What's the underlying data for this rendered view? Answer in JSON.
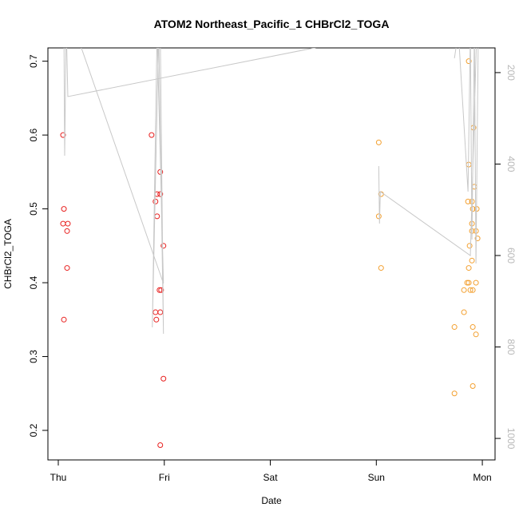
{
  "chart_data": {
    "type": "scatter",
    "title": "ATOM2 Northeast_Pacific_1 CHBrCl2_TOGA",
    "x_label": "Date",
    "y_label": "CHBrCl2_TOGA",
    "xlim": [
      -0.098,
      4.12
    ],
    "xticks": [
      {
        "value": 0,
        "label": "Thu"
      },
      {
        "value": 1,
        "label": "Fri"
      },
      {
        "value": 2,
        "label": "Sat"
      },
      {
        "value": 3,
        "label": "Sun"
      },
      {
        "value": 4,
        "label": "Mon"
      }
    ],
    "ylim": [
      0.16,
      0.718
    ],
    "yticks": [
      0.2,
      0.3,
      0.4,
      0.5,
      0.6,
      0.7
    ],
    "y2lim": [
      1047,
      146
    ],
    "y2ticks": [
      200,
      400,
      600,
      800,
      1000
    ],
    "series": [
      {
        "color": "#e8201f",
        "x": [
          0.045,
          0.053,
          0.045,
          0.09,
          0.083,
          0.083,
          0.053,
          0.88,
          0.917,
          0.932,
          0.962,
          0.962,
          0.932,
          0.992,
          0.955,
          0.97,
          0.917,
          0.962,
          0.925,
          0.992,
          0.962
        ],
        "values": [
          0.6,
          0.5,
          0.48,
          0.48,
          0.47,
          0.42,
          0.35,
          0.6,
          0.51,
          0.52,
          0.52,
          0.55,
          0.49,
          0.45,
          0.39,
          0.39,
          0.36,
          0.36,
          0.35,
          0.27,
          0.18
        ]
      },
      {
        "color": "#f3a030",
        "x": [
          3.023,
          3.045,
          3.023,
          3.045,
          3.872,
          3.872,
          3.917,
          3.925,
          3.865,
          3.902,
          3.91,
          3.947,
          3.902,
          3.902,
          3.94,
          3.955,
          3.88,
          3.902,
          3.872,
          3.857,
          3.872,
          3.94,
          3.827,
          3.887,
          3.91,
          3.827,
          3.737,
          3.91,
          3.94,
          3.737,
          3.91
        ],
        "values": [
          0.59,
          0.52,
          0.49,
          0.42,
          0.7,
          0.56,
          0.61,
          0.53,
          0.51,
          0.51,
          0.5,
          0.5,
          0.48,
          0.47,
          0.47,
          0.46,
          0.45,
          0.43,
          0.42,
          0.4,
          0.4,
          0.4,
          0.39,
          0.39,
          0.39,
          0.36,
          0.34,
          0.34,
          0.33,
          0.25,
          0.26
        ]
      },
      {
        "color": "#c8c8c8",
        "style": "line",
        "axis": "y2",
        "x": [
          0.053,
          0.06,
          0.075,
          0.09,
          2.534,
          null,
          0.165,
          0.992,
          0.932,
          0.887,
          0.947,
          0.992,
          0.962,
          null,
          3.023,
          3.03,
          3.038,
          3.887,
          3.947,
          null,
          3.737,
          3.774,
          3.865,
          3.887,
          3.902,
          3.925,
          3.94,
          3.962
        ],
        "values": [
          93.5,
          381.7,
          93.5,
          252.4,
          140.6,
          null,
          110.9,
          661.1,
          110.9,
          757.2,
          110.9,
          771.2,
          110.9,
          null,
          404.4,
          530.1,
          460.3,
          600,
          110.9,
          null,
          168.6,
          110.9,
          460.3,
          110.9,
          565.1,
          110.9,
          617.5,
          110.9
        ]
      }
    ]
  }
}
